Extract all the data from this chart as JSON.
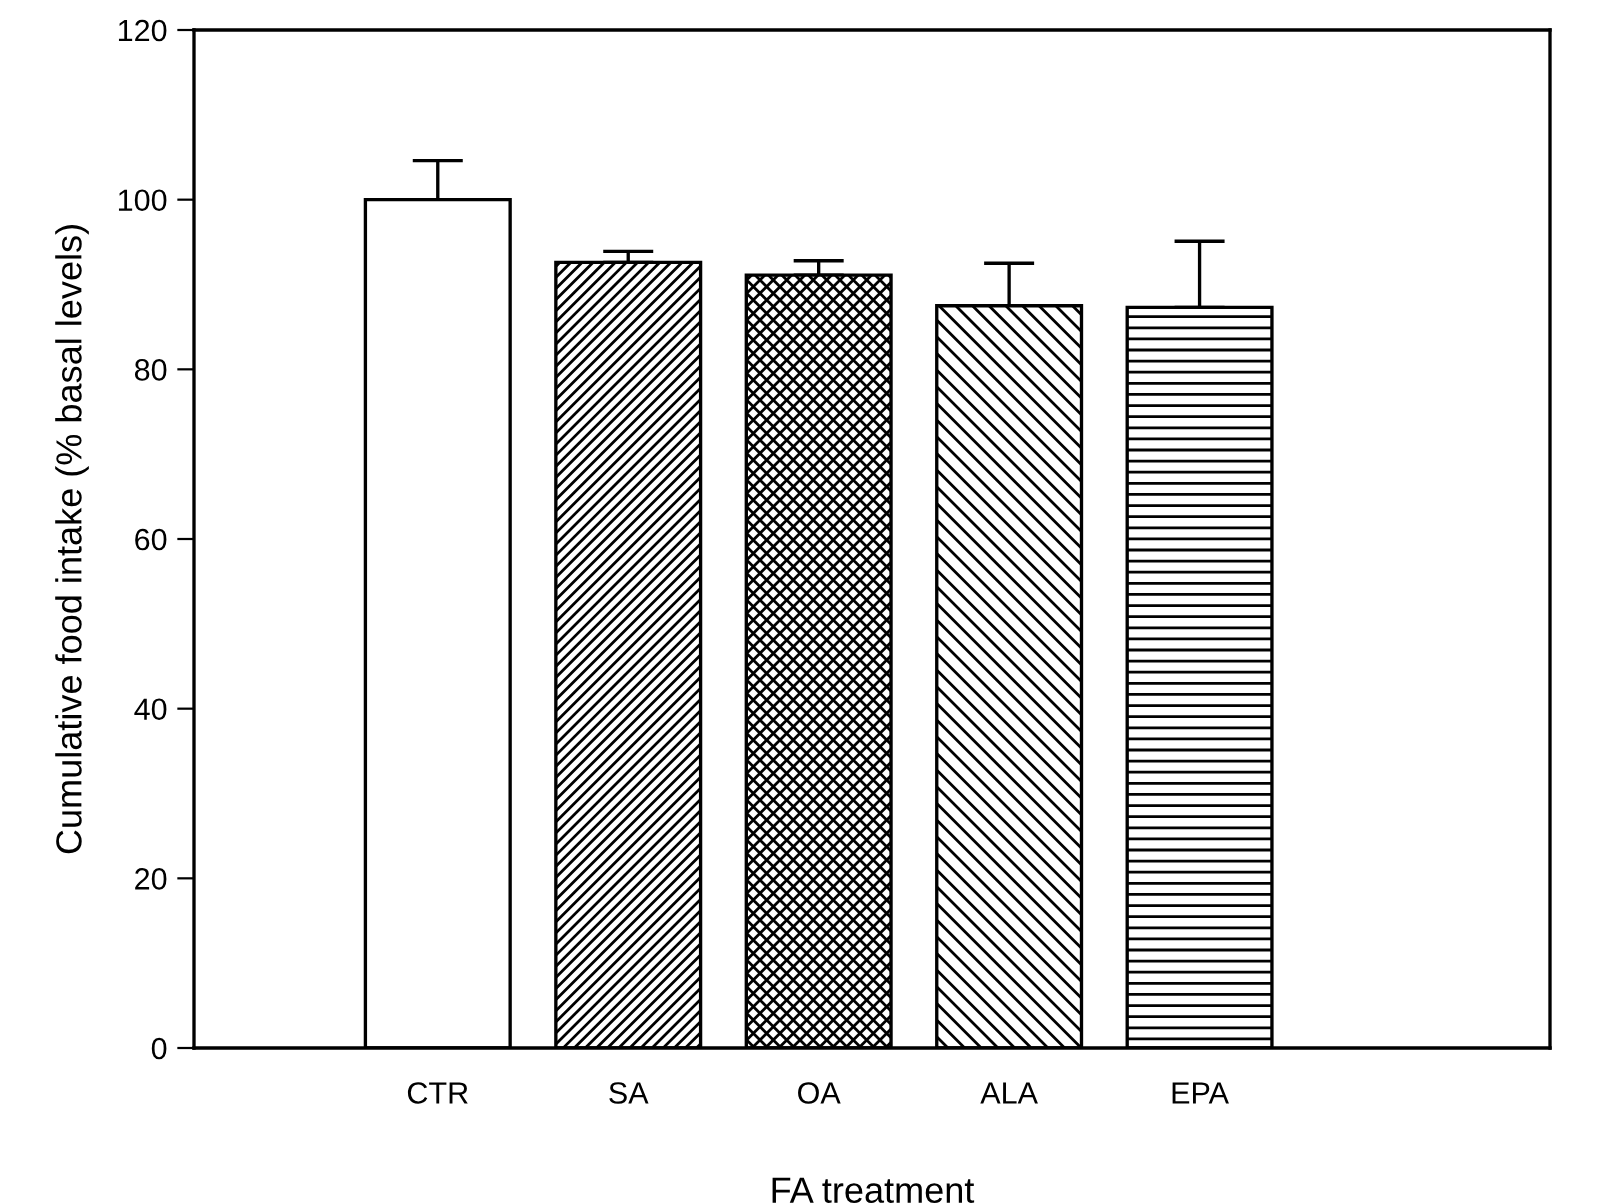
{
  "chart_data": {
    "type": "bar",
    "xlabel": "FA treatment",
    "ylabel": "Cumulative food intake (% basal levels)",
    "categories": [
      "CTR",
      "SA",
      "OA",
      "ALA",
      "EPA"
    ],
    "values": [
      100,
      92.6,
      91.1,
      87.5,
      87.3
    ],
    "errors": [
      [
        100,
        104.6
      ],
      [
        92.6,
        93.9
      ],
      [
        91.1,
        92.8
      ],
      [
        87.5,
        92.5
      ],
      [
        87.3,
        95.1
      ]
    ],
    "ylim": [
      0,
      120
    ],
    "yticks": [
      0,
      20,
      40,
      60,
      80,
      100,
      120
    ],
    "grid": false,
    "legend": false
  }
}
